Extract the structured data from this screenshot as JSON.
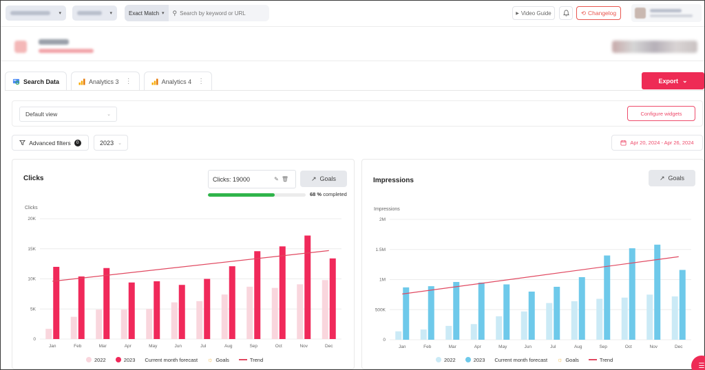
{
  "header": {
    "match_type": "Exact Match",
    "search_placeholder": "Search by keyword or URL",
    "video_guide": "Video Guide",
    "changelog": "Changelog"
  },
  "icons": {
    "search": "search-icon",
    "play": "play-icon",
    "bell": "bell-icon",
    "history": "history-icon",
    "funnel": "funnel-icon",
    "calendar": "calendar-icon",
    "trend": "trend-icon",
    "edit": "pencil-icon",
    "delete": "trash-icon"
  },
  "tabs": [
    {
      "label": "Search Data",
      "active": true
    },
    {
      "label": "Analytics 3",
      "active": false
    },
    {
      "label": "Analytics 4",
      "active": false
    }
  ],
  "export_label": "Export",
  "view": {
    "selected": "Default view",
    "configure_label": "Configure widgets"
  },
  "filters": {
    "advanced_label": "Advanced filters",
    "advanced_count": "0",
    "year": "2023",
    "date_range": "Apr 20, 2024 - Apr 26, 2024"
  },
  "clicks_card": {
    "title": "Clicks",
    "goal_label": "Clicks: 19000",
    "goals_button": "Goals",
    "progress_percent": 68,
    "progress_value": "68 %",
    "progress_suffix": "completed",
    "legend": {
      "s2022": "2022",
      "s2023": "2023",
      "forecast": "Current month forecast",
      "goals": "Goals",
      "trend": "Trend"
    }
  },
  "impressions_card": {
    "title": "Impressions",
    "goals_button": "Goals",
    "legend": {
      "s2022": "2022",
      "s2023": "2023",
      "forecast": "Current month forecast",
      "goals": "Goals",
      "trend": "Trend"
    }
  },
  "colors": {
    "accent": "#ee2b55",
    "clicks_2023": "#f0295a",
    "clicks_2022": "#f9d6dd",
    "impr_2023": "#6ec9ea",
    "impr_2022": "#cbeaf6",
    "trend": "#e0475f",
    "progress": "#2fb44a"
  },
  "chart_data": [
    {
      "type": "bar",
      "ylabel": "Clicks",
      "categories": [
        "Jan",
        "Feb",
        "Mar",
        "Apr",
        "May",
        "Jun",
        "Jul",
        "Aug",
        "Sep",
        "Oct",
        "Nov",
        "Dec"
      ],
      "yticks": [
        "0",
        "5K",
        "10K",
        "15K",
        "20K"
      ],
      "ylim": [
        0,
        20000
      ],
      "series": [
        {
          "name": "2022",
          "values": [
            1700,
            3700,
            4900,
            4900,
            5000,
            6100,
            6300,
            7400,
            8700,
            8500,
            9100,
            9800
          ]
        },
        {
          "name": "2023",
          "values": [
            12000,
            10400,
            11800,
            9400,
            9600,
            9000,
            10000,
            12100,
            14600,
            15400,
            17200,
            13400
          ]
        }
      ],
      "trend": [
        9600,
        14700
      ]
    },
    {
      "type": "bar",
      "ylabel": "Impressions",
      "categories": [
        "Jan",
        "Feb",
        "Mar",
        "Apr",
        "May",
        "Jun",
        "Jul",
        "Aug",
        "Sep",
        "Oct",
        "Nov",
        "Dec"
      ],
      "yticks": [
        "0",
        "500K",
        "1M",
        "1.5M",
        "2M"
      ],
      "ylim": [
        0,
        2000000
      ],
      "series": [
        {
          "name": "2022",
          "values": [
            140000,
            170000,
            230000,
            260000,
            390000,
            470000,
            610000,
            640000,
            680000,
            700000,
            750000,
            720000
          ]
        },
        {
          "name": "2023",
          "values": [
            870000,
            890000,
            960000,
            950000,
            920000,
            800000,
            880000,
            1040000,
            1400000,
            1520000,
            1580000,
            1160000
          ]
        }
      ],
      "trend": [
        760000,
        1380000
      ]
    }
  ]
}
